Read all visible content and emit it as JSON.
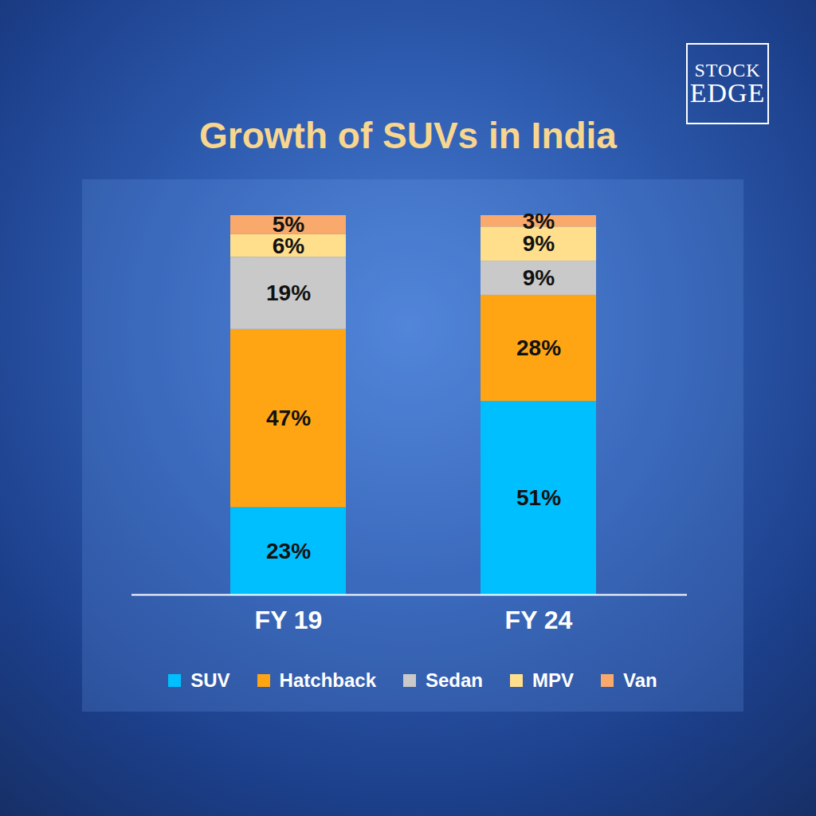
{
  "chart_data": {
    "type": "bar",
    "title": "Growth of SUVs in India",
    "annotations": [
      "STOCK",
      "EDGE"
    ],
    "categories": [
      "FY 19",
      "FY 24"
    ],
    "series": [
      {
        "name": "SUV",
        "color": "#00bfff",
        "values": [
          23,
          51
        ],
        "value_labels": [
          "23%",
          "51%"
        ]
      },
      {
        "name": "Hatchback",
        "color": "#ffa514",
        "values": [
          47,
          28
        ],
        "value_labels": [
          "47%",
          "28%"
        ]
      },
      {
        "name": "Sedan",
        "color": "#c9c9c9",
        "values": [
          19,
          9
        ],
        "value_labels": [
          "19%",
          "9%"
        ]
      },
      {
        "name": "MPV",
        "color": "#ffdf8c",
        "values": [
          6,
          9
        ],
        "value_labels": [
          "6%",
          "9%"
        ]
      },
      {
        "name": "Van",
        "color": "#f9a96b",
        "values": [
          5,
          3
        ],
        "value_labels": [
          "5%",
          "3%"
        ]
      }
    ],
    "ylim": [
      0,
      100
    ],
    "stacked": true,
    "data_labels": true,
    "tick_labels": "x",
    "legend": "bottom"
  }
}
